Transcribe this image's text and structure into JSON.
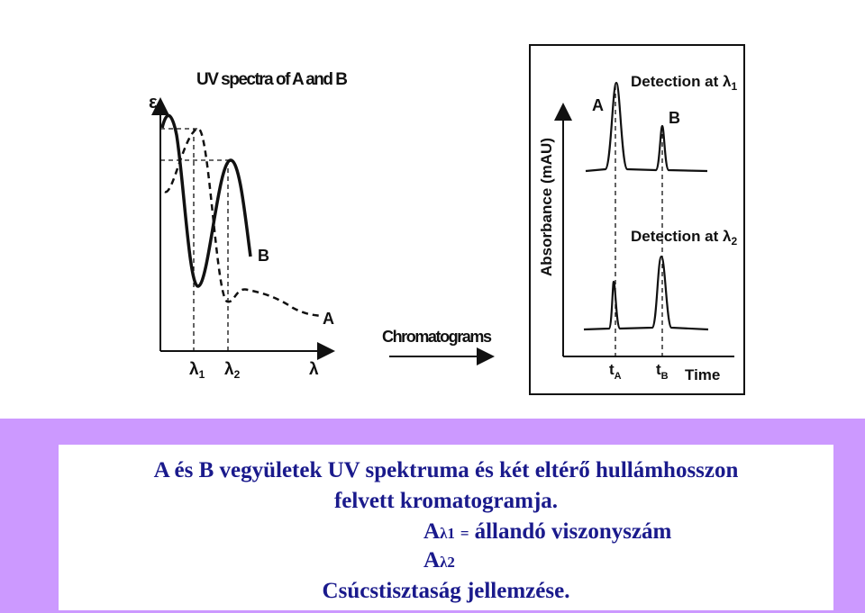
{
  "spectra": {
    "title": "UV spectra of A and B",
    "y_axis": "ε",
    "curve_b": "B",
    "curve_a": "A",
    "x_labels": [
      {
        "symbol": "λ",
        "sub": "1"
      },
      {
        "symbol": "λ",
        "sub": "2"
      },
      {
        "symbol": "λ"
      }
    ]
  },
  "arrow_label": "Chromatograms",
  "chromatograms": {
    "y_axis": "Absorbance (mAU)",
    "peak_a": "A",
    "peak_b": "B",
    "top": {
      "label": "Detection at λ",
      "sub": "1"
    },
    "bottom": {
      "label": "Detection at λ",
      "sub": "2"
    },
    "x_labels": [
      {
        "symbol": "t",
        "sub": "A"
      },
      {
        "symbol": "t",
        "sub": "B"
      }
    ],
    "x_axis": "Time"
  },
  "caption": {
    "lines": [
      "A és B vegyületek UV spektruma és két eltérő hullámhosszon",
      "felvett kromatogramja."
    ],
    "numerator": {
      "symbol": "A",
      "sub": "λ1"
    },
    "equals": "=",
    "ratio_text": "állandó viszonyszám",
    "denominator": {
      "symbol": "A",
      "sub": "λ2"
    },
    "conclusion": "Csúcstisztaság jellemzése."
  }
}
